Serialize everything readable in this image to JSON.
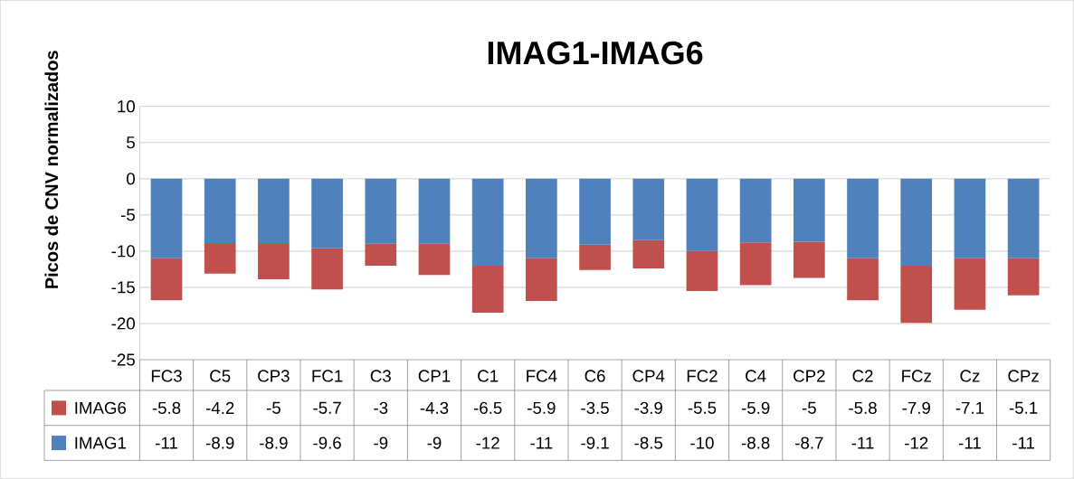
{
  "chart_data": {
    "type": "bar",
    "stacked": true,
    "title": "IMAG1-IMAG6",
    "ylabel": "Picos de CNV normalizados",
    "categories": [
      "FC3",
      "C5",
      "CP3",
      "FC1",
      "C3",
      "CP1",
      "C1",
      "FC4",
      "C6",
      "CP4",
      "FC2",
      "C4",
      "CP2",
      "C2",
      "FCz",
      "Cz",
      "CPz"
    ],
    "series": [
      {
        "name": "IMAG1",
        "color": "#4f81bd",
        "values": [
          -11,
          -8.9,
          -8.9,
          -9.6,
          -9,
          -9,
          -12,
          -11,
          -9.1,
          -8.5,
          -10,
          -8.8,
          -8.7,
          -11,
          -12,
          -11,
          -11
        ]
      },
      {
        "name": "IMAG6",
        "color": "#c0504d",
        "values": [
          -5.8,
          -4.2,
          -5,
          -5.7,
          -3,
          -4.3,
          -6.5,
          -5.9,
          -3.5,
          -3.9,
          -5.5,
          -5.9,
          -5,
          -5.8,
          -7.9,
          -7.1,
          -5.1
        ]
      }
    ],
    "ylim": [
      -25,
      10
    ],
    "yticks": [
      -25,
      -20,
      -15,
      -10,
      -5,
      0,
      5,
      10
    ],
    "grid": "y",
    "legend": "bottom left",
    "data_labels": true
  }
}
